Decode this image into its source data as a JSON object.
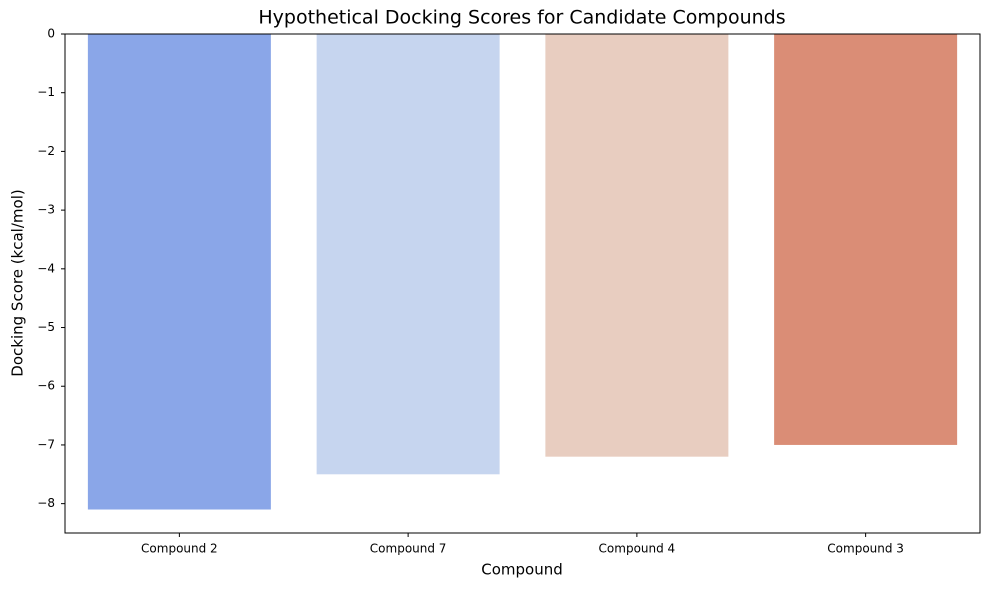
{
  "chart_data": {
    "type": "bar",
    "title": "Hypothetical Docking Scores for Candidate Compounds",
    "x_label": "Compound",
    "y_label": "Docking Score (kcal/mol)",
    "categories": [
      "Compound 2",
      "Compound 7",
      "Compound 4",
      "Compound 3"
    ],
    "values": [
      -8.1,
      -7.5,
      -7.2,
      -7.0
    ],
    "colors": [
      "#8aa6e8",
      "#c6d5ef",
      "#e8cdc0",
      "#da8d76"
    ],
    "ylim": [
      -8.5,
      0
    ],
    "yticks": [
      {
        "value": -8,
        "label": "−8"
      },
      {
        "value": -7,
        "label": "−7"
      },
      {
        "value": -6,
        "label": "−6"
      },
      {
        "value": -5,
        "label": "−5"
      },
      {
        "value": -4,
        "label": "−4"
      },
      {
        "value": -3,
        "label": "−3"
      },
      {
        "value": -2,
        "label": "−2"
      },
      {
        "value": -1,
        "label": "−1"
      },
      0
    ]
  }
}
